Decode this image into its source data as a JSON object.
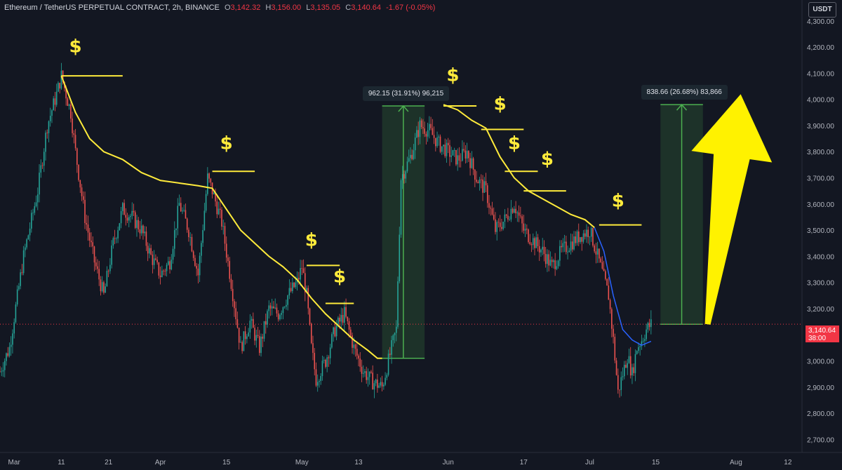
{
  "header": {
    "symbol": "Ethereum / TetherUS PERPETUAL CONTRACT, 2h, BINANCE",
    "open_label": "O",
    "open": "3,142.32",
    "high_label": "H",
    "high": "3,156.00",
    "low_label": "L",
    "low": "3,135.05",
    "close_label": "C",
    "close": "3,140.64",
    "change": "-1.67 (-0.05%)"
  },
  "currency_button": "USDT",
  "price_tag": {
    "price": "3,140.64",
    "countdown": "38:00"
  },
  "measurements": [
    {
      "text": "962.15 (31.91%) 96,215"
    },
    {
      "text": "838.66 (26.68%) 83,866"
    }
  ],
  "colors": {
    "background": "#131722",
    "up": "#26a69a",
    "down": "#ef5350",
    "annotation": "#ffeb3b",
    "arrow": "#fff200",
    "measure": "#4caf50",
    "current": "#f23645"
  },
  "chart_data": {
    "type": "candlestick",
    "ylim": [
      2650,
      4380
    ],
    "y_ticks": [
      "4,300.00",
      "4,200.00",
      "4,100.00",
      "4,000.00",
      "3,900.00",
      "3,800.00",
      "3,700.00",
      "3,600.00",
      "3,500.00",
      "3,400.00",
      "3,300.00",
      "3,200.00",
      "3,100.00",
      "3,000.00",
      "2,900.00",
      "2,800.00",
      "2,700.00"
    ],
    "y_tick_values": [
      4300,
      4200,
      4100,
      4000,
      3900,
      3800,
      3700,
      3600,
      3500,
      3400,
      3300,
      3200,
      3100,
      3000,
      2900,
      2800,
      2700
    ],
    "x_ticks": [
      {
        "label": "Mar",
        "day": 1
      },
      {
        "label": "11",
        "day": 11
      },
      {
        "label": "21",
        "day": 21
      },
      {
        "label": "Apr",
        "day": 32
      },
      {
        "label": "15",
        "day": 46
      },
      {
        "label": "May",
        "day": 62
      },
      {
        "label": "13",
        "day": 74
      },
      {
        "label": "Jun",
        "day": 93
      },
      {
        "label": "17",
        "day": 109
      },
      {
        "label": "Jul",
        "day": 123
      },
      {
        "label": "15",
        "day": 137
      },
      {
        "label": "Aug",
        "day": 154
      },
      {
        "label": "12",
        "day": 165
      }
    ],
    "day_range": [
      -2,
      168
    ],
    "price_path": [
      [
        -2,
        2960
      ],
      [
        0,
        3050
      ],
      [
        3,
        3400
      ],
      [
        6,
        3650
      ],
      [
        8,
        3900
      ],
      [
        10,
        4020
      ],
      [
        11,
        4090
      ],
      [
        13,
        3950
      ],
      [
        14,
        3800
      ],
      [
        16,
        3550
      ],
      [
        18,
        3380
      ],
      [
        20,
        3250
      ],
      [
        22,
        3450
      ],
      [
        24,
        3580
      ],
      [
        26,
        3550
      ],
      [
        28,
        3500
      ],
      [
        30,
        3400
      ],
      [
        32,
        3330
      ],
      [
        34,
        3380
      ],
      [
        36,
        3600
      ],
      [
        38,
        3500
      ],
      [
        40,
        3330
      ],
      [
        42,
        3700
      ],
      [
        43,
        3650
      ],
      [
        45,
        3530
      ],
      [
        47,
        3300
      ],
      [
        49,
        3050
      ],
      [
        51,
        3150
      ],
      [
        53,
        3050
      ],
      [
        55,
        3200
      ],
      [
        57,
        3180
      ],
      [
        59,
        3250
      ],
      [
        61,
        3300
      ],
      [
        62,
        3360
      ],
      [
        63,
        3250
      ],
      [
        64,
        3050
      ],
      [
        65,
        2930
      ],
      [
        67,
        3000
      ],
      [
        69,
        3120
      ],
      [
        71,
        3180
      ],
      [
        73,
        3050
      ],
      [
        75,
        2960
      ],
      [
        77,
        2920
      ],
      [
        79,
        2900
      ],
      [
        81,
        3050
      ],
      [
        82,
        3120
      ],
      [
        83,
        3700
      ],
      [
        85,
        3780
      ],
      [
        87,
        3900
      ],
      [
        89,
        3880
      ],
      [
        91,
        3830
      ],
      [
        93,
        3800
      ],
      [
        95,
        3770
      ],
      [
        97,
        3800
      ],
      [
        99,
        3700
      ],
      [
        101,
        3650
      ],
      [
        103,
        3500
      ],
      [
        105,
        3540
      ],
      [
        107,
        3600
      ],
      [
        109,
        3500
      ],
      [
        111,
        3460
      ],
      [
        113,
        3420
      ],
      [
        115,
        3360
      ],
      [
        117,
        3420
      ],
      [
        119,
        3450
      ],
      [
        121,
        3480
      ],
      [
        123,
        3500
      ],
      [
        125,
        3380
      ],
      [
        127,
        3250
      ],
      [
        128,
        3080
      ],
      [
        129,
        2880
      ],
      [
        130,
        2950
      ],
      [
        131,
        3020
      ],
      [
        132,
        2950
      ],
      [
        133,
        3050
      ],
      [
        134,
        3080
      ],
      [
        135,
        3120
      ],
      [
        136,
        3140
      ]
    ],
    "moving_average": [
      [
        11,
        4090
      ],
      [
        14,
        3950
      ],
      [
        17,
        3850
      ],
      [
        20,
        3800
      ],
      [
        24,
        3770
      ],
      [
        28,
        3720
      ],
      [
        32,
        3690
      ],
      [
        36,
        3680
      ],
      [
        40,
        3670
      ],
      [
        43,
        3660
      ],
      [
        46,
        3580
      ],
      [
        49,
        3500
      ],
      [
        52,
        3450
      ],
      [
        55,
        3400
      ],
      [
        58,
        3360
      ],
      [
        61,
        3310
      ],
      [
        64,
        3240
      ],
      [
        67,
        3180
      ],
      [
        70,
        3130
      ],
      [
        73,
        3080
      ],
      [
        76,
        3040
      ],
      [
        78,
        3010
      ],
      [
        79,
        3010
      ]
    ],
    "moving_average_2": [
      [
        92,
        3980
      ],
      [
        95,
        3960
      ],
      [
        98,
        3920
      ],
      [
        101,
        3890
      ],
      [
        104,
        3780
      ],
      [
        107,
        3700
      ],
      [
        110,
        3650
      ],
      [
        113,
        3620
      ],
      [
        116,
        3590
      ],
      [
        119,
        3560
      ],
      [
        122,
        3540
      ],
      [
        124,
        3510
      ]
    ],
    "moving_average_3": [
      [
        124,
        3510
      ],
      [
        126,
        3420
      ],
      [
        128,
        3250
      ],
      [
        130,
        3120
      ],
      [
        132,
        3080
      ],
      [
        134,
        3060
      ],
      [
        136,
        3075
      ]
    ],
    "resistance_lines": [
      {
        "day_from": 11,
        "day_to": 24,
        "price": 4090
      },
      {
        "day_from": 43,
        "day_to": 52,
        "price": 3725
      },
      {
        "day_from": 63,
        "day_to": 70,
        "price": 3365
      },
      {
        "day_from": 67,
        "day_to": 73,
        "price": 3220
      },
      {
        "day_from": 92,
        "day_to": 99,
        "price": 3975
      },
      {
        "day_from": 100,
        "day_to": 109,
        "price": 3885
      },
      {
        "day_from": 105,
        "day_to": 112,
        "price": 3725
      },
      {
        "day_from": 109,
        "day_to": 118,
        "price": 3650
      },
      {
        "day_from": 125,
        "day_to": 134,
        "price": 3520
      }
    ],
    "dollar_markers": [
      {
        "day": 14,
        "price": 4180
      },
      {
        "day": 46,
        "price": 3810
      },
      {
        "day": 64,
        "price": 3440
      },
      {
        "day": 70,
        "price": 3300
      },
      {
        "day": 94,
        "price": 4070
      },
      {
        "day": 104,
        "price": 3960
      },
      {
        "day": 107,
        "price": 3810
      },
      {
        "day": 114,
        "price": 3750
      },
      {
        "day": 129,
        "price": 3590
      }
    ],
    "measure_boxes": [
      {
        "day_from": 79,
        "day_to": 88,
        "price_from": 3010,
        "price_to": 3975
      },
      {
        "day_from": 138,
        "day_to": 147,
        "price_from": 3140,
        "price_to": 3980
      }
    ],
    "arrow": {
      "from_day": 148,
      "from_price": 3140,
      "to_day": 155,
      "to_price": 4020
    },
    "current_price": 3140.64
  }
}
